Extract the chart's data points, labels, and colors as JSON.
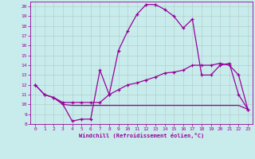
{
  "xlabel": "Windchill (Refroidissement éolien,°C)",
  "bg_color": "#c8ecec",
  "line_color": "#990099",
  "grid_color": "#b0c8c8",
  "xlim": [
    -0.5,
    23.5
  ],
  "ylim": [
    8,
    20.5
  ],
  "yticks": [
    8,
    9,
    10,
    11,
    12,
    13,
    14,
    15,
    16,
    17,
    18,
    19,
    20
  ],
  "xticks": [
    0,
    1,
    2,
    3,
    4,
    5,
    6,
    7,
    8,
    9,
    10,
    11,
    12,
    13,
    14,
    15,
    16,
    17,
    18,
    19,
    20,
    21,
    22,
    23
  ],
  "curve_upper_x": [
    0,
    1,
    2,
    3,
    4,
    5,
    6,
    7,
    8,
    9,
    10,
    11,
    12,
    13,
    14,
    15,
    16,
    17,
    18,
    19,
    20,
    21,
    22,
    23
  ],
  "curve_upper_y": [
    12,
    11,
    10.7,
    10,
    8.3,
    8.5,
    8.5,
    13.5,
    11,
    15.5,
    17.5,
    19.2,
    20.2,
    20.2,
    19.7,
    19,
    17.8,
    18.7,
    13,
    13,
    14,
    14.2,
    11,
    9.5
  ],
  "curve_mid_x": [
    0,
    1,
    2,
    3,
    4,
    5,
    6,
    7,
    8,
    9,
    10,
    11,
    12,
    13,
    14,
    15,
    16,
    17,
    18,
    19,
    20,
    21,
    22,
    23
  ],
  "curve_mid_y": [
    12,
    11,
    10.7,
    10.2,
    10.2,
    10.2,
    10.2,
    10.2,
    11,
    11.5,
    12,
    12.2,
    12.5,
    12.8,
    13.2,
    13.3,
    13.5,
    14,
    14,
    14,
    14.2,
    14,
    13,
    9.5
  ],
  "curve_flat_x": [
    2,
    3,
    4,
    5,
    6,
    7,
    8,
    9,
    10,
    11,
    12,
    13,
    14,
    15,
    16,
    17,
    18,
    19,
    20,
    21,
    22,
    23
  ],
  "curve_flat_y": [
    10.7,
    10,
    9.9,
    9.9,
    9.9,
    9.9,
    9.9,
    9.9,
    9.9,
    9.9,
    9.9,
    9.9,
    9.9,
    9.9,
    9.9,
    9.9,
    9.9,
    9.9,
    9.9,
    9.9,
    9.9,
    9.5
  ]
}
